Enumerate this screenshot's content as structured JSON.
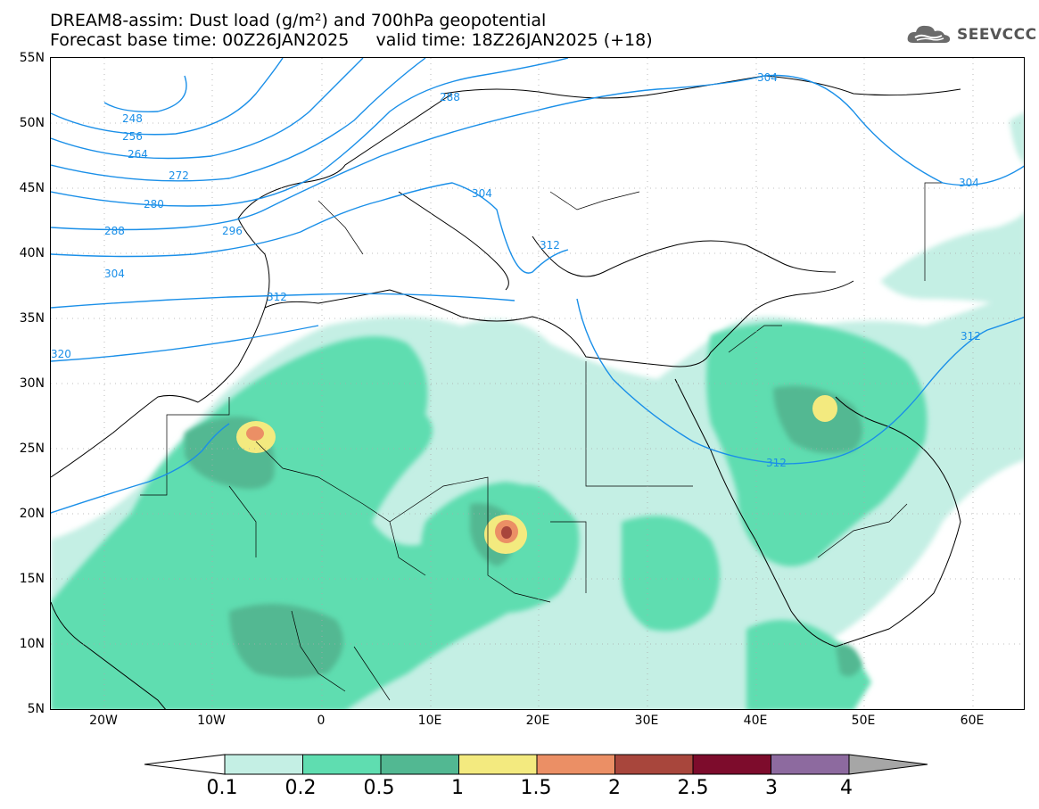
{
  "header": {
    "title_line1": "DREAM8-assim: Dust load (g/m²) and 700hPa geopotential",
    "title_line2": "Forecast base time: 00Z26JAN2025     valid time: 18Z26JAN2025 (+18)",
    "logo_text": "SEEVCCC",
    "logo_icon": "cloud-icon"
  },
  "map": {
    "lat_labels": [
      "55N",
      "50N",
      "45N",
      "40N",
      "35N",
      "30N",
      "25N",
      "20N",
      "15N",
      "10N",
      "5N"
    ],
    "lon_labels": [
      "20W",
      "10W",
      "0",
      "10E",
      "20E",
      "30E",
      "40E",
      "50E",
      "60E"
    ],
    "contour_labels": [
      "248",
      "256",
      "264",
      "272",
      "280",
      "288",
      "296",
      "304",
      "312",
      "320",
      "288",
      "304",
      "304",
      "312",
      "312",
      "312",
      "304"
    ],
    "contour_color": "#1a8fe8"
  },
  "colorbar": {
    "labels": [
      "0.1",
      "0.2",
      "0.5",
      "1",
      "1.5",
      "2",
      "2.5",
      "3",
      "4"
    ],
    "colors": [
      "#c4efe4",
      "#5fddb0",
      "#52b892",
      "#f3ea7f",
      "#eb8f65",
      "#a8463c",
      "#7d0c2c",
      "#8d6a9f"
    ],
    "under_color": "#ffffff",
    "over_color": "#a6a6a6"
  }
}
